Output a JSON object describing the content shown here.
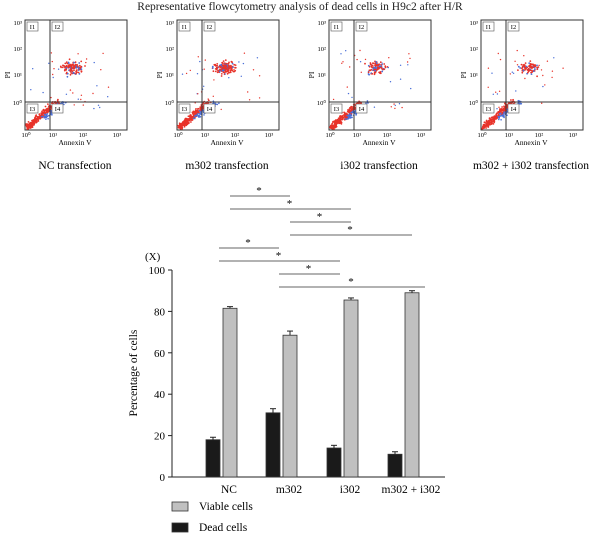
{
  "figure_title": "Representative flowcytometry analysis of dead cells in H9c2 after H/R",
  "flow_panels": [
    {
      "caption": "NC  transfection"
    },
    {
      "caption": "m302  transfection"
    },
    {
      "caption": "i302  transfection"
    },
    {
      "caption": "m302 + i302 transfection"
    }
  ],
  "flow_axis": {
    "y_label": "PI",
    "x_label": "Annexin V",
    "tick_labels": [
      "10³",
      "10²",
      "10¹",
      "10⁰",
      "10⁰",
      "10¹",
      "10²",
      "10³"
    ],
    "quadrants": [
      "I1",
      "I2",
      "I3",
      "I4"
    ]
  },
  "colors": {
    "viable": "#c0c0c0",
    "dead": "#1a1a1a",
    "dots_red": "#e8332a",
    "dots_blue": "#4a6fd8"
  },
  "chart_data": {
    "type": "bar",
    "categories": [
      "NC",
      "m302",
      "i302",
      "m302 + i302"
    ],
    "series": [
      {
        "name": "Dead cells",
        "values": [
          18,
          31,
          14,
          11
        ],
        "errors": [
          1.2,
          2.0,
          1.3,
          1.2
        ]
      },
      {
        "name": "Viable cells",
        "values": [
          81.5,
          68.5,
          85.5,
          89
        ],
        "errors": [
          0.8,
          2.0,
          1.0,
          1.0
        ]
      }
    ],
    "ylabel": "Percentage of cells",
    "y_unit": "(X)",
    "ylim": [
      0,
      100
    ],
    "yticks": [
      0,
      20,
      40,
      60,
      80,
      100
    ],
    "legend": [
      "Viable cells",
      "Dead cells"
    ],
    "legend_position": "bottom-left",
    "significance": {
      "marker": "*",
      "viable_pairs": [
        [
          "NC",
          "m302"
        ],
        [
          "NC",
          "i302"
        ],
        [
          "m302",
          "i302"
        ],
        [
          "m302",
          "m302 + i302"
        ]
      ],
      "dead_pairs": [
        [
          "NC",
          "m302"
        ],
        [
          "NC",
          "i302"
        ],
        [
          "m302",
          "i302"
        ],
        [
          "m302",
          "m302 + i302"
        ]
      ]
    }
  }
}
